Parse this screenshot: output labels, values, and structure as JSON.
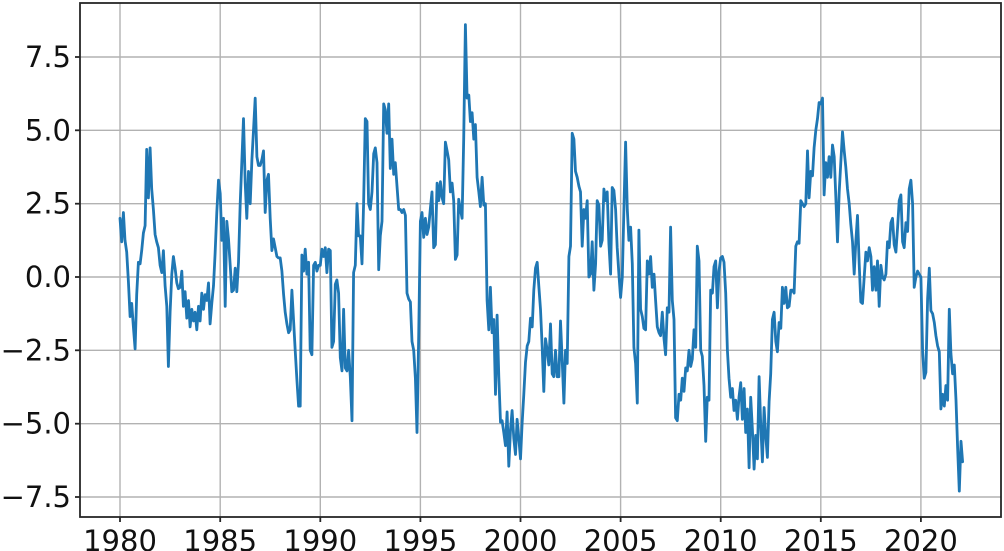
{
  "figure": {
    "background": "#ffffff"
  },
  "chart_data": {
    "type": "line",
    "title": "",
    "xlabel": "",
    "ylabel": "",
    "grid": true,
    "legend_position": "none",
    "line_color": "#1f77b4",
    "line_width": 2.8,
    "grid_color": "#b2b2b2",
    "grid_width": 1.4,
    "spine_color": "#262626",
    "spine_width": 1.8,
    "tick_color": "#262626",
    "tick_length": 5,
    "tick_label_color": "#111111",
    "xlim": [
      1978.0,
      2024.0
    ],
    "ylim": [
      -8.182,
      9.341
    ],
    "xticks": [
      {
        "value": 1980,
        "label": "1980"
      },
      {
        "value": 1985,
        "label": "1985"
      },
      {
        "value": 1990,
        "label": "1990"
      },
      {
        "value": 1995,
        "label": "1995"
      },
      {
        "value": 2000,
        "label": "2000"
      },
      {
        "value": 2005,
        "label": "2005"
      },
      {
        "value": 2010,
        "label": "2010"
      },
      {
        "value": 2015,
        "label": "2015"
      },
      {
        "value": 2020,
        "label": "2020"
      }
    ],
    "yticks": [
      {
        "value": 7.5,
        "label": "7.5"
      },
      {
        "value": 5.0,
        "label": "5.0"
      },
      {
        "value": 2.5,
        "label": "2.5"
      },
      {
        "value": 0.0,
        "label": "0.0"
      },
      {
        "value": -2.5,
        "label": "−2.5"
      },
      {
        "value": -5.0,
        "label": "−5.0"
      },
      {
        "value": -7.5,
        "label": "−7.5"
      }
    ],
    "x_start": 1980.0,
    "x_step": 0.0833333,
    "x_unit": "year (monthly samples, Jan 1980 - Feb 2022)",
    "values": [
      2.0,
      1.2,
      2.2,
      1.25,
      0.85,
      -0.15,
      -1.35,
      -0.9,
      -1.7,
      -2.45,
      -0.6,
      0.5,
      0.45,
      0.9,
      1.5,
      1.75,
      4.35,
      2.7,
      4.4,
      3.0,
      2.3,
      1.45,
      1.2,
      1.0,
      0.4,
      0.15,
      0.9,
      -0.3,
      -1.0,
      -3.05,
      -1.2,
      0.1,
      0.7,
      0.3,
      -0.2,
      -0.4,
      -0.35,
      0.2,
      -1.0,
      -0.5,
      -1.4,
      -0.8,
      -1.7,
      -1.1,
      -1.5,
      -1.2,
      -1.8,
      -1.0,
      -1.5,
      -0.55,
      -1.1,
      -0.6,
      -0.8,
      -0.2,
      -1.6,
      -0.9,
      -0.3,
      0.8,
      2.2,
      3.3,
      2.85,
      1.25,
      2.0,
      -1.0,
      1.9,
      1.3,
      0.4,
      -0.5,
      -0.45,
      0.3,
      -0.5,
      0.5,
      2.5,
      3.9,
      5.4,
      3.2,
      2.0,
      3.6,
      2.5,
      4.0,
      5.0,
      6.1,
      4.1,
      3.8,
      3.8,
      4.0,
      4.3,
      2.2,
      3.3,
      3.5,
      2.0,
      0.9,
      1.3,
      1.0,
      0.7,
      0.65,
      0.65,
      0.2,
      -0.6,
      -1.2,
      -1.6,
      -1.9,
      -1.8,
      -0.45,
      -1.5,
      -2.5,
      -3.5,
      -4.4,
      -4.4,
      0.75,
      0.2,
      0.95,
      0.1,
      0.5,
      -2.5,
      -2.65,
      0.4,
      0.5,
      0.2,
      0.4,
      0.4,
      0.95,
      0.7,
      1.0,
      0.15,
      0.95,
      0.9,
      -2.4,
      -2.2,
      -0.25,
      -0.1,
      -0.55,
      -2.75,
      -3.2,
      -1.1,
      -3.1,
      -3.2,
      -2.5,
      -3.4,
      -4.9,
      0.15,
      0.4,
      2.5,
      1.4,
      1.4,
      0.45,
      2.5,
      5.4,
      5.3,
      2.5,
      2.3,
      2.9,
      4.2,
      4.4,
      3.9,
      0.25,
      1.4,
      1.9,
      5.9,
      5.7,
      4.9,
      5.9,
      3.7,
      4.7,
      3.5,
      3.9,
      3.1,
      2.3,
      2.3,
      2.2,
      2.3,
      2.1,
      -0.55,
      -0.75,
      -0.85,
      -2.2,
      -2.5,
      -3.45,
      -5.3,
      -2.0,
      1.9,
      2.2,
      1.35,
      2.0,
      1.45,
      1.7,
      2.35,
      2.9,
      1.0,
      1.1,
      3.2,
      2.6,
      3.25,
      2.7,
      2.5,
      4.6,
      4.3,
      4.0,
      2.9,
      3.2,
      2.6,
      0.6,
      0.75,
      2.65,
      2.3,
      2.0,
      4.7,
      8.6,
      6.1,
      6.2,
      5.3,
      5.6,
      4.7,
      5.2,
      3.4,
      2.9,
      2.4,
      3.4,
      2.45,
      2.5,
      -0.8,
      -1.8,
      -0.35,
      -1.9,
      -1.45,
      -4.0,
      -1.3,
      -3.4,
      -4.95,
      -4.9,
      -5.3,
      -5.75,
      -4.6,
      -6.45,
      -5.2,
      -4.55,
      -5.5,
      -6.05,
      -4.85,
      -5.5,
      -6.2,
      -5.0,
      -4.0,
      -2.9,
      -2.35,
      -2.2,
      -1.4,
      -1.7,
      -0.45,
      0.3,
      0.5,
      -0.3,
      -1.1,
      -2.4,
      -3.9,
      -2.1,
      -2.5,
      -3.0,
      -1.6,
      -3.3,
      -3.4,
      -2.5,
      -3.4,
      -3.4,
      -1.5,
      -2.85,
      -4.3,
      -2.5,
      -2.95,
      0.7,
      1.05,
      4.9,
      4.7,
      3.6,
      3.4,
      3.1,
      2.9,
      1.05,
      2.3,
      2.0,
      2.6,
      0.0,
      0.1,
      1.2,
      -0.45,
      0.45,
      2.6,
      2.45,
      1.05,
      1.25,
      3.0,
      2.6,
      2.9,
      1.15,
      0.1,
      3.05,
      2.95,
      2.3,
      1.0,
      0.1,
      -0.7,
      0.0,
      2.3,
      4.6,
      2.3,
      1.25,
      1.7,
      0.45,
      -2.4,
      -2.95,
      -4.3,
      1.6,
      -1.1,
      -1.35,
      -1.75,
      -1.8,
      0.55,
      0.1,
      0.7,
      -0.35,
      0.1,
      -0.8,
      -1.7,
      -1.9,
      -2.0,
      -1.2,
      -2.1,
      -2.65,
      -1.05,
      -1.2,
      1.7,
      -0.8,
      -1.45,
      -4.8,
      -4.9,
      -4.0,
      -4.2,
      -3.45,
      -3.9,
      -3.1,
      -3.2,
      -2.5,
      -3.05,
      -2.8,
      -1.8,
      -2.4,
      1.05,
      0.55,
      -2.5,
      -2.7,
      -3.7,
      -5.6,
      -4.1,
      -4.2,
      -0.45,
      -0.55,
      0.35,
      0.55,
      -1.05,
      0.2,
      0.65,
      0.7,
      0.5,
      -0.55,
      -2.5,
      -3.45,
      -4.1,
      -3.8,
      -4.55,
      -4.2,
      -4.85,
      -4.1,
      -3.6,
      -4.85,
      -3.8,
      -5.3,
      -4.5,
      -6.5,
      -4.1,
      -5.2,
      -6.55,
      -5.4,
      -6.2,
      -3.4,
      -5.0,
      -6.3,
      -4.45,
      -5.4,
      -6.15,
      -4.25,
      -3.3,
      -1.45,
      -1.2,
      -2.2,
      -2.55,
      -1.55,
      -1.75,
      -0.35,
      -0.9,
      -0.35,
      -1.05,
      -1.0,
      -0.45,
      -0.45,
      -0.55,
      1.05,
      1.2,
      1.15,
      2.6,
      2.5,
      2.4,
      2.5,
      4.3,
      2.7,
      3.6,
      3.45,
      4.4,
      5.0,
      5.4,
      5.95,
      5.9,
      6.1,
      2.8,
      3.9,
      3.4,
      4.1,
      3.4,
      4.5,
      4.1,
      2.75,
      1.2,
      2.9,
      3.9,
      4.95,
      4.3,
      3.75,
      3.0,
      2.5,
      1.8,
      1.2,
      0.1,
      1.2,
      2.1,
      0.45,
      -0.85,
      -0.9,
      0.0,
      0.85,
      0.55,
      1.0,
      0.7,
      -0.45,
      0.35,
      -0.45,
      0.55,
      -1.0,
      0.4,
      0.0,
      -0.1,
      0.1,
      1.2,
      1.0,
      1.85,
      2.0,
      1.1,
      0.85,
      1.7,
      2.6,
      2.8,
      1.2,
      1.0,
      1.85,
      1.55,
      3.0,
      3.3,
      2.5,
      -0.35,
      0.0,
      0.2,
      0.1,
      0.0,
      -2.5,
      -3.45,
      -3.25,
      -0.75,
      0.3,
      -1.15,
      -1.25,
      -1.55,
      -2.0,
      -2.35,
      -2.55,
      -4.5,
      -4.0,
      -4.4,
      -3.7,
      -4.2,
      -1.1,
      -2.6,
      -3.3,
      -3.0,
      -4.2,
      -5.8,
      -7.3,
      -5.6,
      -6.3
    ]
  }
}
